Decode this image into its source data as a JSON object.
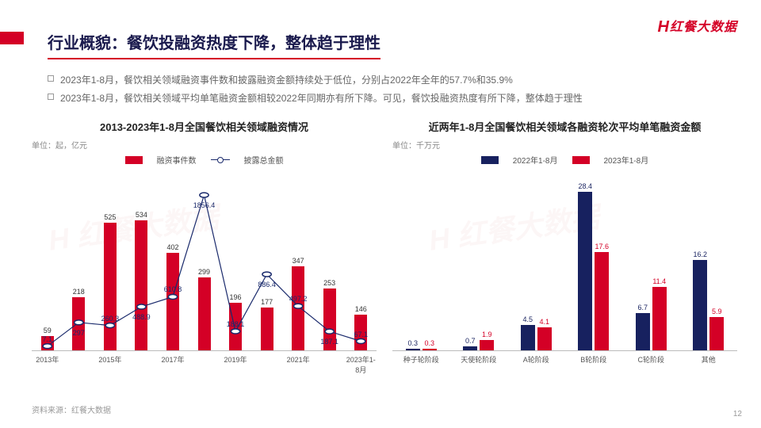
{
  "logo": {
    "text": "红餐大数据",
    "prefix": "H"
  },
  "title": "行业概貌：餐饮投融资热度下降，整体趋于理性",
  "bullets": [
    "2023年1-8月，餐饮相关领域融资事件数和披露融资金额持续处于低位，分别占2022年全年的57.7%和35.9%",
    "2023年1-8月，餐饮相关领域平均单笔融资金额相较2022年同期亦有所下降。可见，餐饮投融资热度有所下降，整体趋于理性"
  ],
  "source": "资料来源：红餐大数据",
  "page": "12",
  "left_chart": {
    "title": "2013-2023年1-8月全国餐饮相关领域融资情况",
    "unit": "单位：起，亿元",
    "legend": {
      "bar": "融资事件数",
      "line": "披露总金额"
    },
    "categories": [
      "2013年",
      "",
      "2015年",
      "",
      "2017年",
      "",
      "2019年",
      "",
      "2021年",
      "",
      "2023年1-8月"
    ],
    "bar_values": [
      59,
      218,
      525,
      534,
      402,
      299,
      196,
      177,
      347,
      253,
      146
    ],
    "bar_color": "#d40026",
    "bar_max": 600,
    "line_values": [
      7.1,
      297,
      260.3,
      488.9,
      610.8,
      1856.4,
      188.1,
      886.4,
      497.2,
      187.1,
      67.1
    ],
    "line_color": "#1a2a6c",
    "line_max": 2000,
    "background": "#ffffff"
  },
  "right_chart": {
    "title": "近两年1-8月全国餐饮相关领域各融资轮次平均单笔融资金额",
    "unit": "单位：千万元",
    "legend": {
      "s1": "2022年1-8月",
      "s2": "2023年1-8月"
    },
    "categories": [
      "种子轮阶段",
      "天使轮阶段",
      "A轮阶段",
      "B轮阶段",
      "C轮阶段",
      "其他"
    ],
    "s1_values": [
      0.3,
      0.7,
      4.5,
      28.4,
      6.7,
      16.2
    ],
    "s2_values": [
      0.3,
      1.9,
      4.1,
      17.6,
      11.4,
      5.9
    ],
    "s1_color": "#17215f",
    "s2_color": "#d40026",
    "y_max": 30,
    "background": "#ffffff"
  }
}
